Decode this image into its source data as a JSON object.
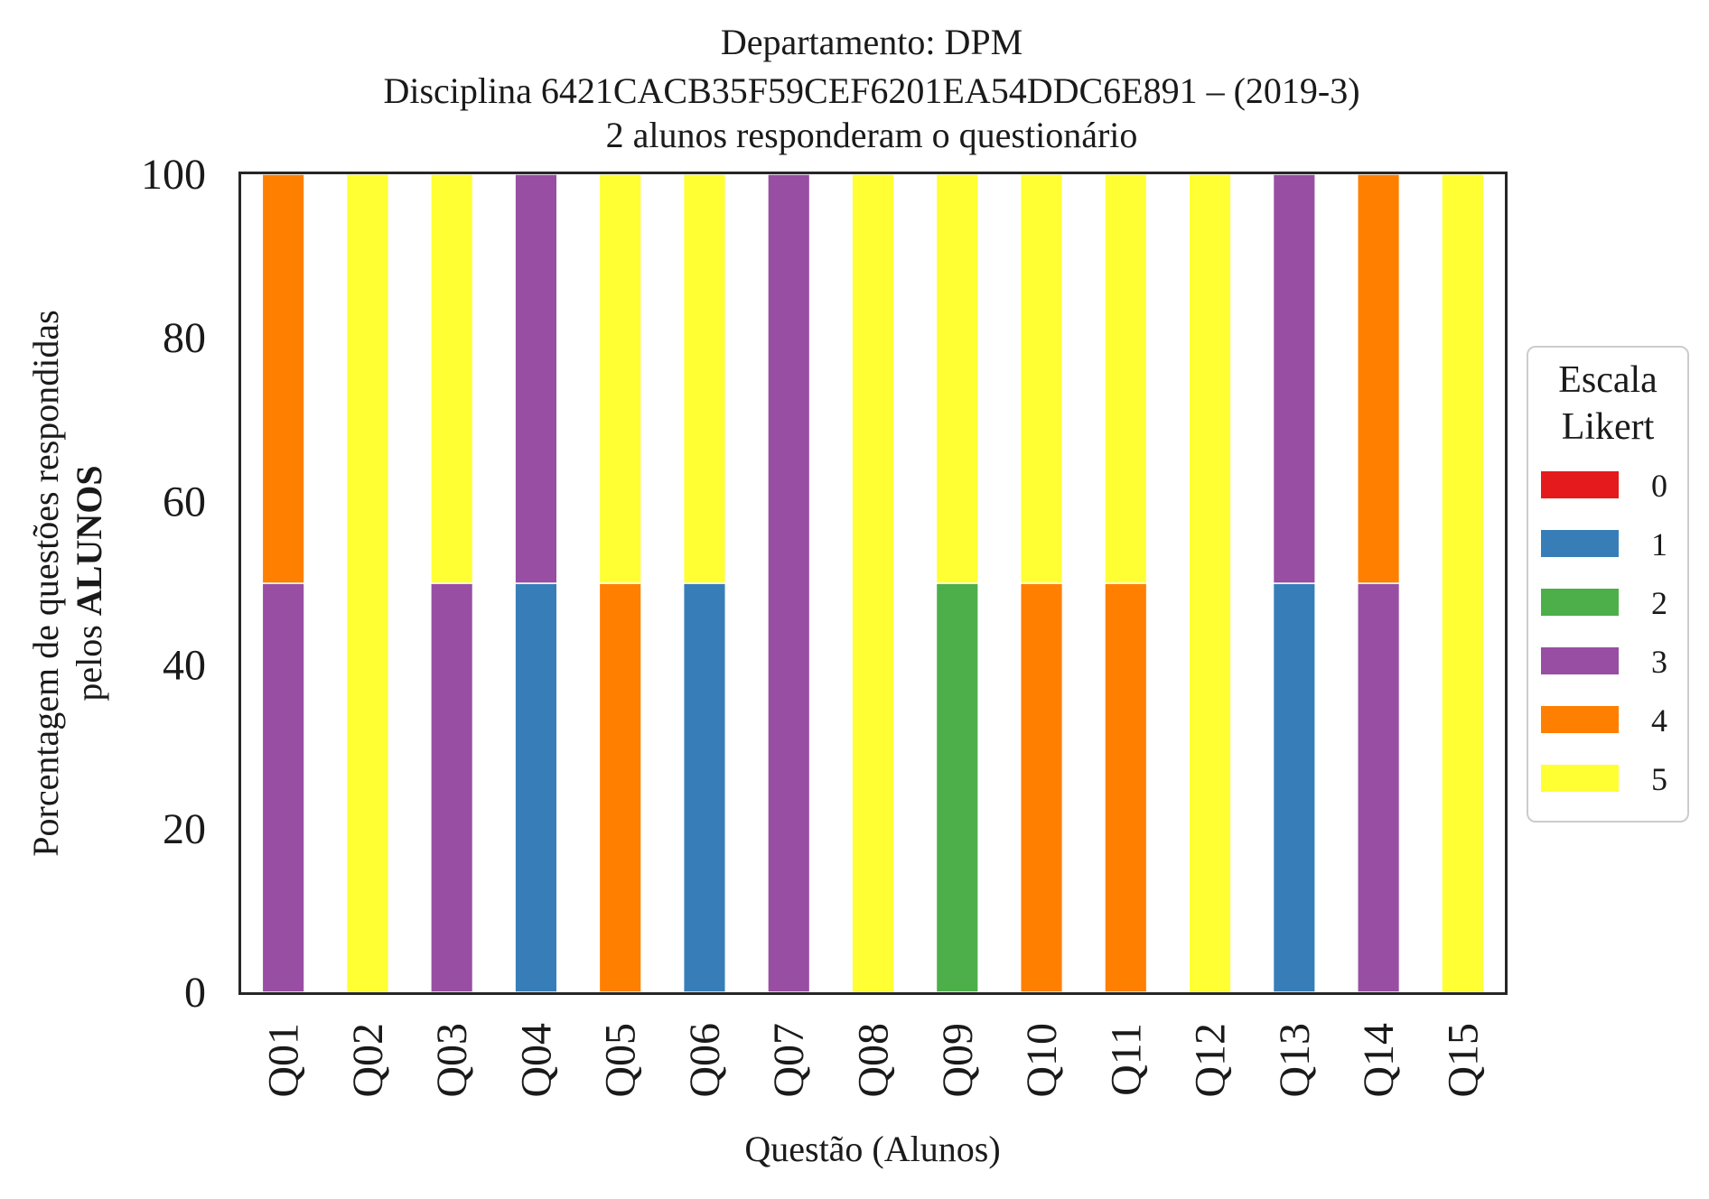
{
  "chart_data": {
    "type": "bar",
    "stacked": true,
    "title_lines": [
      "Departamento: DPM",
      "Disciplina 6421CACB35F59CEF6201EA54DDC6E891 – (2019-3)",
      "2 alunos responderam o questionário"
    ],
    "xlabel": "Questão (Alunos)",
    "ylabel_line1": "Porcentagem de questões respondidas",
    "ylabel_line2_prefix": "pelos ",
    "ylabel_line2_bold": "ALUNOS",
    "ylim": [
      0,
      100
    ],
    "yticks": [
      "0",
      "20",
      "40",
      "60",
      "80",
      "100"
    ],
    "grid": false,
    "legend_position": "right",
    "legend": {
      "title_line1": "Escala",
      "title_line2": "Likert",
      "entries": [
        {
          "label": "0",
          "color": "#e41a1c"
        },
        {
          "label": "1",
          "color": "#377eb8"
        },
        {
          "label": "2",
          "color": "#4daf4a"
        },
        {
          "label": "3",
          "color": "#984ea3"
        },
        {
          "label": "4",
          "color": "#ff7f00"
        },
        {
          "label": "5",
          "color": "#ffff33"
        }
      ]
    },
    "categories": [
      "Q01",
      "Q02",
      "Q03",
      "Q04",
      "Q05",
      "Q06",
      "Q07",
      "Q08",
      "Q09",
      "Q10",
      "Q11",
      "Q12",
      "Q13",
      "Q14",
      "Q15"
    ],
    "series": [
      {
        "name": "0",
        "color": "#e41a1c",
        "values": [
          0,
          0,
          0,
          0,
          0,
          0,
          0,
          0,
          0,
          0,
          0,
          0,
          0,
          0,
          0
        ]
      },
      {
        "name": "1",
        "color": "#377eb8",
        "values": [
          0,
          0,
          0,
          50,
          0,
          50,
          0,
          0,
          0,
          0,
          0,
          0,
          50,
          0,
          0
        ]
      },
      {
        "name": "2",
        "color": "#4daf4a",
        "values": [
          0,
          0,
          0,
          0,
          0,
          0,
          0,
          0,
          50,
          0,
          0,
          0,
          0,
          0,
          0
        ]
      },
      {
        "name": "3",
        "color": "#984ea3",
        "values": [
          50,
          0,
          50,
          50,
          0,
          0,
          100,
          0,
          0,
          0,
          0,
          0,
          50,
          50,
          0
        ]
      },
      {
        "name": "4",
        "color": "#ff7f00",
        "values": [
          50,
          0,
          0,
          0,
          50,
          0,
          0,
          0,
          0,
          50,
          50,
          0,
          0,
          50,
          0
        ]
      },
      {
        "name": "5",
        "color": "#ffff33",
        "values": [
          0,
          100,
          50,
          0,
          50,
          50,
          0,
          100,
          50,
          50,
          50,
          100,
          0,
          0,
          100
        ]
      }
    ]
  }
}
